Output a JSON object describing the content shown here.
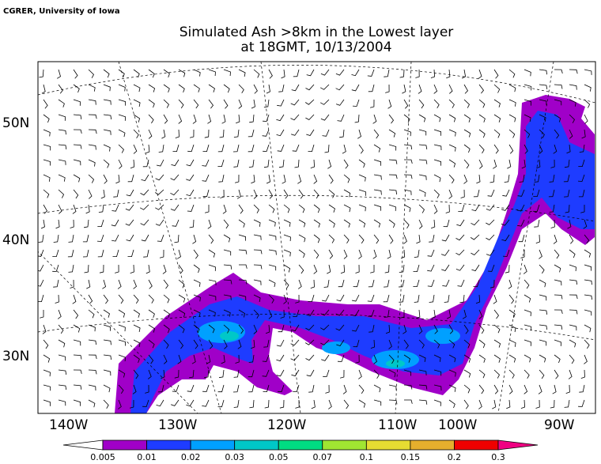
{
  "credit": "CGRER, University of Iowa",
  "title": [
    "Simulated Ash  >8km in the Lowest layer",
    "at 18GMT, 10/13/2004"
  ],
  "longitude_labels": [
    "140W",
    "130W",
    "120W",
    "110W",
    "100W",
    "90W"
  ],
  "latitude_labels": [
    "50N",
    "40N",
    "30N"
  ],
  "colorbar": {
    "levels": [
      0.005,
      0.01,
      0.02,
      0.03,
      0.05,
      0.07,
      0.1,
      0.15,
      0.2,
      0.3
    ],
    "colors": [
      "#ffffff",
      "#a000c8",
      "#1e3cff",
      "#00a0ff",
      "#00c8c8",
      "#00dc82",
      "#a0e632",
      "#e6dc32",
      "#e6af2d",
      "#f00000",
      "#f00082"
    ]
  }
}
